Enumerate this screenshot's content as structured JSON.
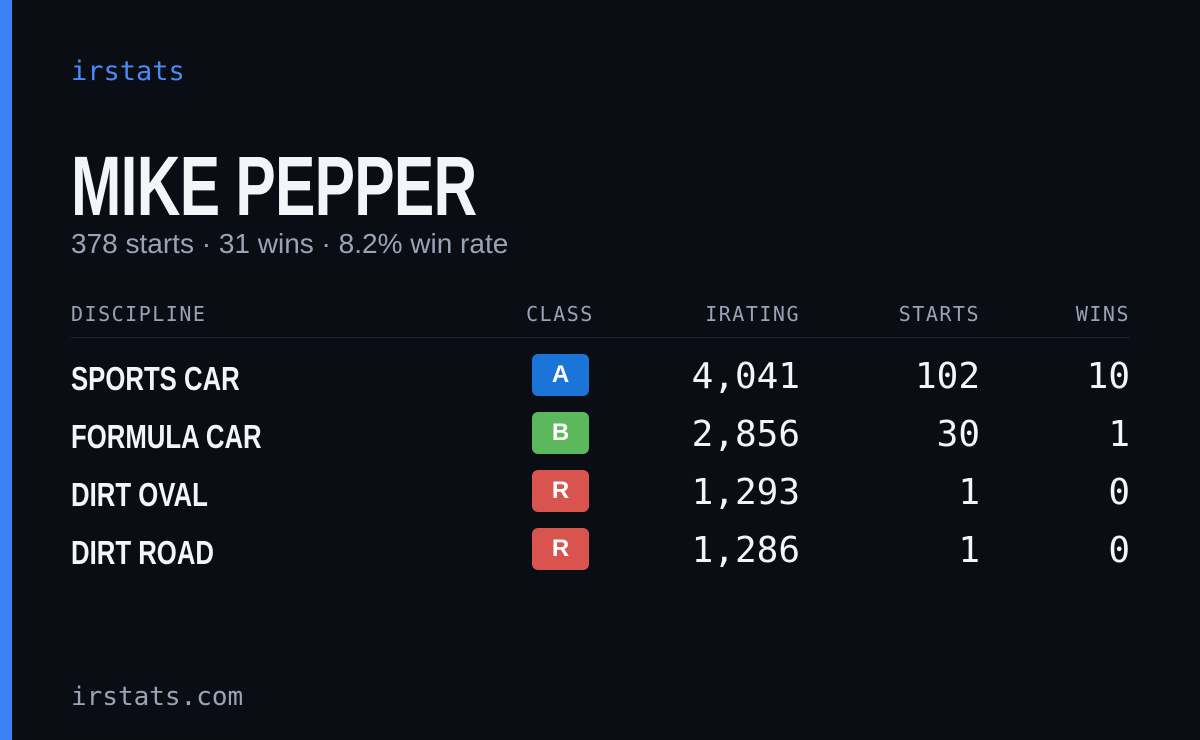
{
  "brand": "irstats",
  "player": {
    "name": "MIKE PEPPER",
    "summary": "378 starts · 31 wins · 8.2% win rate"
  },
  "table": {
    "columns": [
      "DISCIPLINE",
      "CLASS",
      "IRATING",
      "STARTS",
      "WINS"
    ],
    "rows": [
      [
        "SPORTS CAR",
        "A",
        "4,041",
        "102",
        "10"
      ],
      [
        "FORMULA CAR",
        "B",
        "2,856",
        "30",
        "1"
      ],
      [
        "DIRT OVAL",
        "R",
        "1,293",
        "1",
        "0"
      ],
      [
        "DIRT ROAD",
        "R",
        "1,286",
        "1",
        "0"
      ]
    ],
    "class_colors": [
      "#1b74d8",
      "#5cb85c",
      "#d9534f",
      "#d9534f"
    ]
  },
  "footer": "irstats.com"
}
